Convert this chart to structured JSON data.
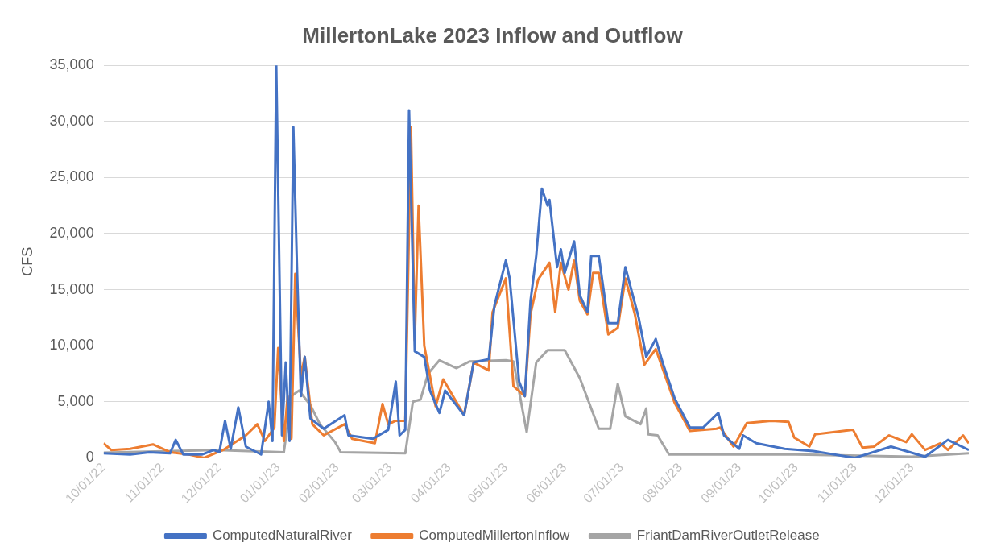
{
  "chart_data": {
    "type": "line",
    "title": "MillertonLake 2023 Inflow and Outflow",
    "ylabel": "CFS",
    "xlim": [
      "2022-10-01",
      "2023-12-31"
    ],
    "xticks": [
      {
        "value": "2022-10-01",
        "label": "10/01/22"
      },
      {
        "value": "2022-11-01",
        "label": "11/01/22"
      },
      {
        "value": "2022-12-01",
        "label": "12/01/22"
      },
      {
        "value": "2023-01-01",
        "label": "01/01/23"
      },
      {
        "value": "2023-02-01",
        "label": "02/01/23"
      },
      {
        "value": "2023-03-01",
        "label": "03/01/23"
      },
      {
        "value": "2023-04-01",
        "label": "04/01/23"
      },
      {
        "value": "2023-05-01",
        "label": "05/01/23"
      },
      {
        "value": "2023-06-01",
        "label": "06/01/23"
      },
      {
        "value": "2023-07-01",
        "label": "07/01/23"
      },
      {
        "value": "2023-08-01",
        "label": "08/01/23"
      },
      {
        "value": "2023-09-01",
        "label": "09/01/23"
      },
      {
        "value": "2023-10-01",
        "label": "10/01/23"
      },
      {
        "value": "2023-11-01",
        "label": "11/01/23"
      },
      {
        "value": "2023-12-01",
        "label": "12/01/23"
      }
    ],
    "ylim": [
      0,
      35000
    ],
    "yticks": [
      {
        "value": 0,
        "label": "0"
      },
      {
        "value": 5000,
        "label": "5,000"
      },
      {
        "value": 10000,
        "label": "10,000"
      },
      {
        "value": 15000,
        "label": "15,000"
      },
      {
        "value": 20000,
        "label": "20,000"
      },
      {
        "value": 25000,
        "label": "25,000"
      },
      {
        "value": 30000,
        "label": "30,000"
      },
      {
        "value": 35000,
        "label": "35,000"
      }
    ],
    "grid": "y",
    "legend": "bottom",
    "marker": "none",
    "line_style": "solid",
    "series": [
      {
        "name": "ComputedNaturalRiver",
        "color": "#4472c4",
        "x": [
          "2022-10-01",
          "2022-10-15",
          "2022-10-25",
          "2022-11-05",
          "2022-11-08",
          "2022-11-12",
          "2022-11-22",
          "2022-11-28",
          "2022-12-01",
          "2022-12-04",
          "2022-12-07",
          "2022-12-11",
          "2022-12-15",
          "2022-12-23",
          "2022-12-27",
          "2022-12-29",
          "2022-12-31",
          "2023-01-03",
          "2023-01-05",
          "2023-01-07",
          "2023-01-09",
          "2023-01-11",
          "2023-01-13",
          "2023-01-15",
          "2023-01-18",
          "2023-01-25",
          "2023-02-05",
          "2023-02-07",
          "2023-02-20",
          "2023-02-28",
          "2023-03-04",
          "2023-03-06",
          "2023-03-09",
          "2023-03-11",
          "2023-03-14",
          "2023-03-19",
          "2023-03-22",
          "2023-03-27",
          "2023-03-30",
          "2023-04-09",
          "2023-04-14",
          "2023-04-22",
          "2023-04-25",
          "2023-05-01",
          "2023-05-03",
          "2023-05-08",
          "2023-05-11",
          "2023-05-14",
          "2023-05-17",
          "2023-05-20",
          "2023-05-23",
          "2023-05-24",
          "2023-05-28",
          "2023-05-30",
          "2023-06-01",
          "2023-06-06",
          "2023-06-09",
          "2023-06-13",
          "2023-06-15",
          "2023-06-19",
          "2023-06-24",
          "2023-06-29",
          "2023-07-03",
          "2023-07-10",
          "2023-07-14",
          "2023-07-19",
          "2023-07-23",
          "2023-07-29",
          "2023-08-06",
          "2023-08-13",
          "2023-08-21",
          "2023-08-24",
          "2023-09-01",
          "2023-09-03",
          "2023-09-10",
          "2023-09-25",
          "2023-10-10",
          "2023-11-01",
          "2023-11-20",
          "2023-12-08",
          "2023-12-20",
          "2023-12-31"
        ],
        "values": [
          400,
          300,
          500,
          400,
          1600,
          300,
          300,
          700,
          500,
          3300,
          800,
          4500,
          1000,
          300,
          5000,
          1500,
          35000,
          2000,
          8500,
          1500,
          29500,
          16500,
          5500,
          9000,
          3500,
          2600,
          3800,
          2000,
          1700,
          2500,
          6800,
          2000,
          2500,
          31000,
          9500,
          9000,
          6000,
          4000,
          6000,
          3800,
          8500,
          8800,
          13600,
          17600,
          16000,
          6800,
          5500,
          14000,
          18000,
          24000,
          22500,
          23000,
          17000,
          18600,
          16500,
          19300,
          14500,
          13000,
          18000,
          18000,
          12000,
          12000,
          17000,
          12500,
          9000,
          10600,
          8300,
          5300,
          2700,
          2700,
          4000,
          2000,
          800,
          2000,
          1300,
          800,
          600,
          0,
          1000,
          100,
          1600,
          700
        ]
      },
      {
        "name": "ComputedMillertonInflow",
        "color": "#ed7d31",
        "x": [
          "2022-10-01",
          "2022-10-05",
          "2022-10-15",
          "2022-10-27",
          "2022-11-05",
          "2022-11-15",
          "2022-11-23",
          "2022-12-03",
          "2022-12-15",
          "2022-12-21",
          "2022-12-25",
          "2022-12-30",
          "2023-01-01",
          "2023-01-04",
          "2023-01-06",
          "2023-01-08",
          "2023-01-10",
          "2023-01-13",
          "2023-01-15",
          "2023-01-19",
          "2023-01-25",
          "2023-02-05",
          "2023-02-09",
          "2023-02-21",
          "2023-02-25",
          "2023-02-28",
          "2023-03-04",
          "2023-03-09",
          "2023-03-12",
          "2023-03-14",
          "2023-03-16",
          "2023-03-19",
          "2023-03-25",
          "2023-03-29",
          "2023-04-09",
          "2023-04-14",
          "2023-04-22",
          "2023-04-24",
          "2023-05-01",
          "2023-05-05",
          "2023-05-11",
          "2023-05-14",
          "2023-05-18",
          "2023-05-24",
          "2023-05-27",
          "2023-05-30",
          "2023-06-03",
          "2023-06-06",
          "2023-06-09",
          "2023-06-13",
          "2023-06-16",
          "2023-06-19",
          "2023-06-24",
          "2023-06-29",
          "2023-07-03",
          "2023-07-08",
          "2023-07-13",
          "2023-07-19",
          "2023-07-29",
          "2023-08-06",
          "2023-08-20",
          "2023-08-22",
          "2023-08-29",
          "2023-09-05",
          "2023-09-18",
          "2023-09-27",
          "2023-09-30",
          "2023-10-08",
          "2023-10-11",
          "2023-10-31",
          "2023-11-05",
          "2023-11-11",
          "2023-11-19",
          "2023-11-28",
          "2023-12-01",
          "2023-12-08",
          "2023-12-16",
          "2023-12-20",
          "2023-12-28",
          "2023-12-31"
        ],
        "values": [
          1300,
          700,
          800,
          1200,
          500,
          300,
          0,
          700,
          2000,
          3000,
          1500,
          2700,
          9800,
          1500,
          5500,
          1700,
          16400,
          7300,
          9000,
          3000,
          2000,
          3000,
          1700,
          1300,
          4800,
          3000,
          3300,
          3300,
          29500,
          10500,
          22500,
          10000,
          4600,
          7000,
          3800,
          8500,
          7800,
          13000,
          16000,
          6400,
          5500,
          12800,
          15900,
          17400,
          13000,
          17400,
          15000,
          17600,
          14000,
          12800,
          16500,
          16500,
          11000,
          11600,
          16000,
          12800,
          8300,
          9700,
          4900,
          2400,
          2600,
          2700,
          1000,
          3100,
          3300,
          3200,
          1800,
          1000,
          2100,
          2500,
          900,
          1000,
          2000,
          1400,
          2100,
          700,
          1300,
          700,
          2000,
          1300
        ]
      },
      {
        "name": "FriantDamRiverOutletRelease",
        "color": "#a5a5a5",
        "x": [
          "2022-10-01",
          "2022-11-30",
          "2023-01-04",
          "2023-01-08",
          "2023-01-12",
          "2023-01-18",
          "2023-01-23",
          "2023-01-31",
          "2023-02-03",
          "2023-03-09",
          "2023-03-13",
          "2023-03-17",
          "2023-03-21",
          "2023-03-27",
          "2023-04-05",
          "2023-04-12",
          "2023-05-01",
          "2023-05-05",
          "2023-05-12",
          "2023-05-17",
          "2023-05-23",
          "2023-06-01",
          "2023-06-09",
          "2023-06-19",
          "2023-06-25",
          "2023-06-29",
          "2023-07-03",
          "2023-07-11",
          "2023-07-14",
          "2023-07-15",
          "2023-07-20",
          "2023-07-26",
          "2023-10-01",
          "2023-12-01",
          "2023-12-31"
        ],
        "values": [
          450,
          700,
          500,
          5500,
          6000,
          4700,
          3000,
          1400,
          500,
          400,
          5000,
          5200,
          7500,
          8700,
          8000,
          8600,
          8700,
          8600,
          2300,
          8500,
          9600,
          9600,
          7100,
          2600,
          2600,
          6600,
          3700,
          3000,
          4400,
          2100,
          2000,
          300,
          300,
          100,
          400
        ]
      }
    ]
  }
}
